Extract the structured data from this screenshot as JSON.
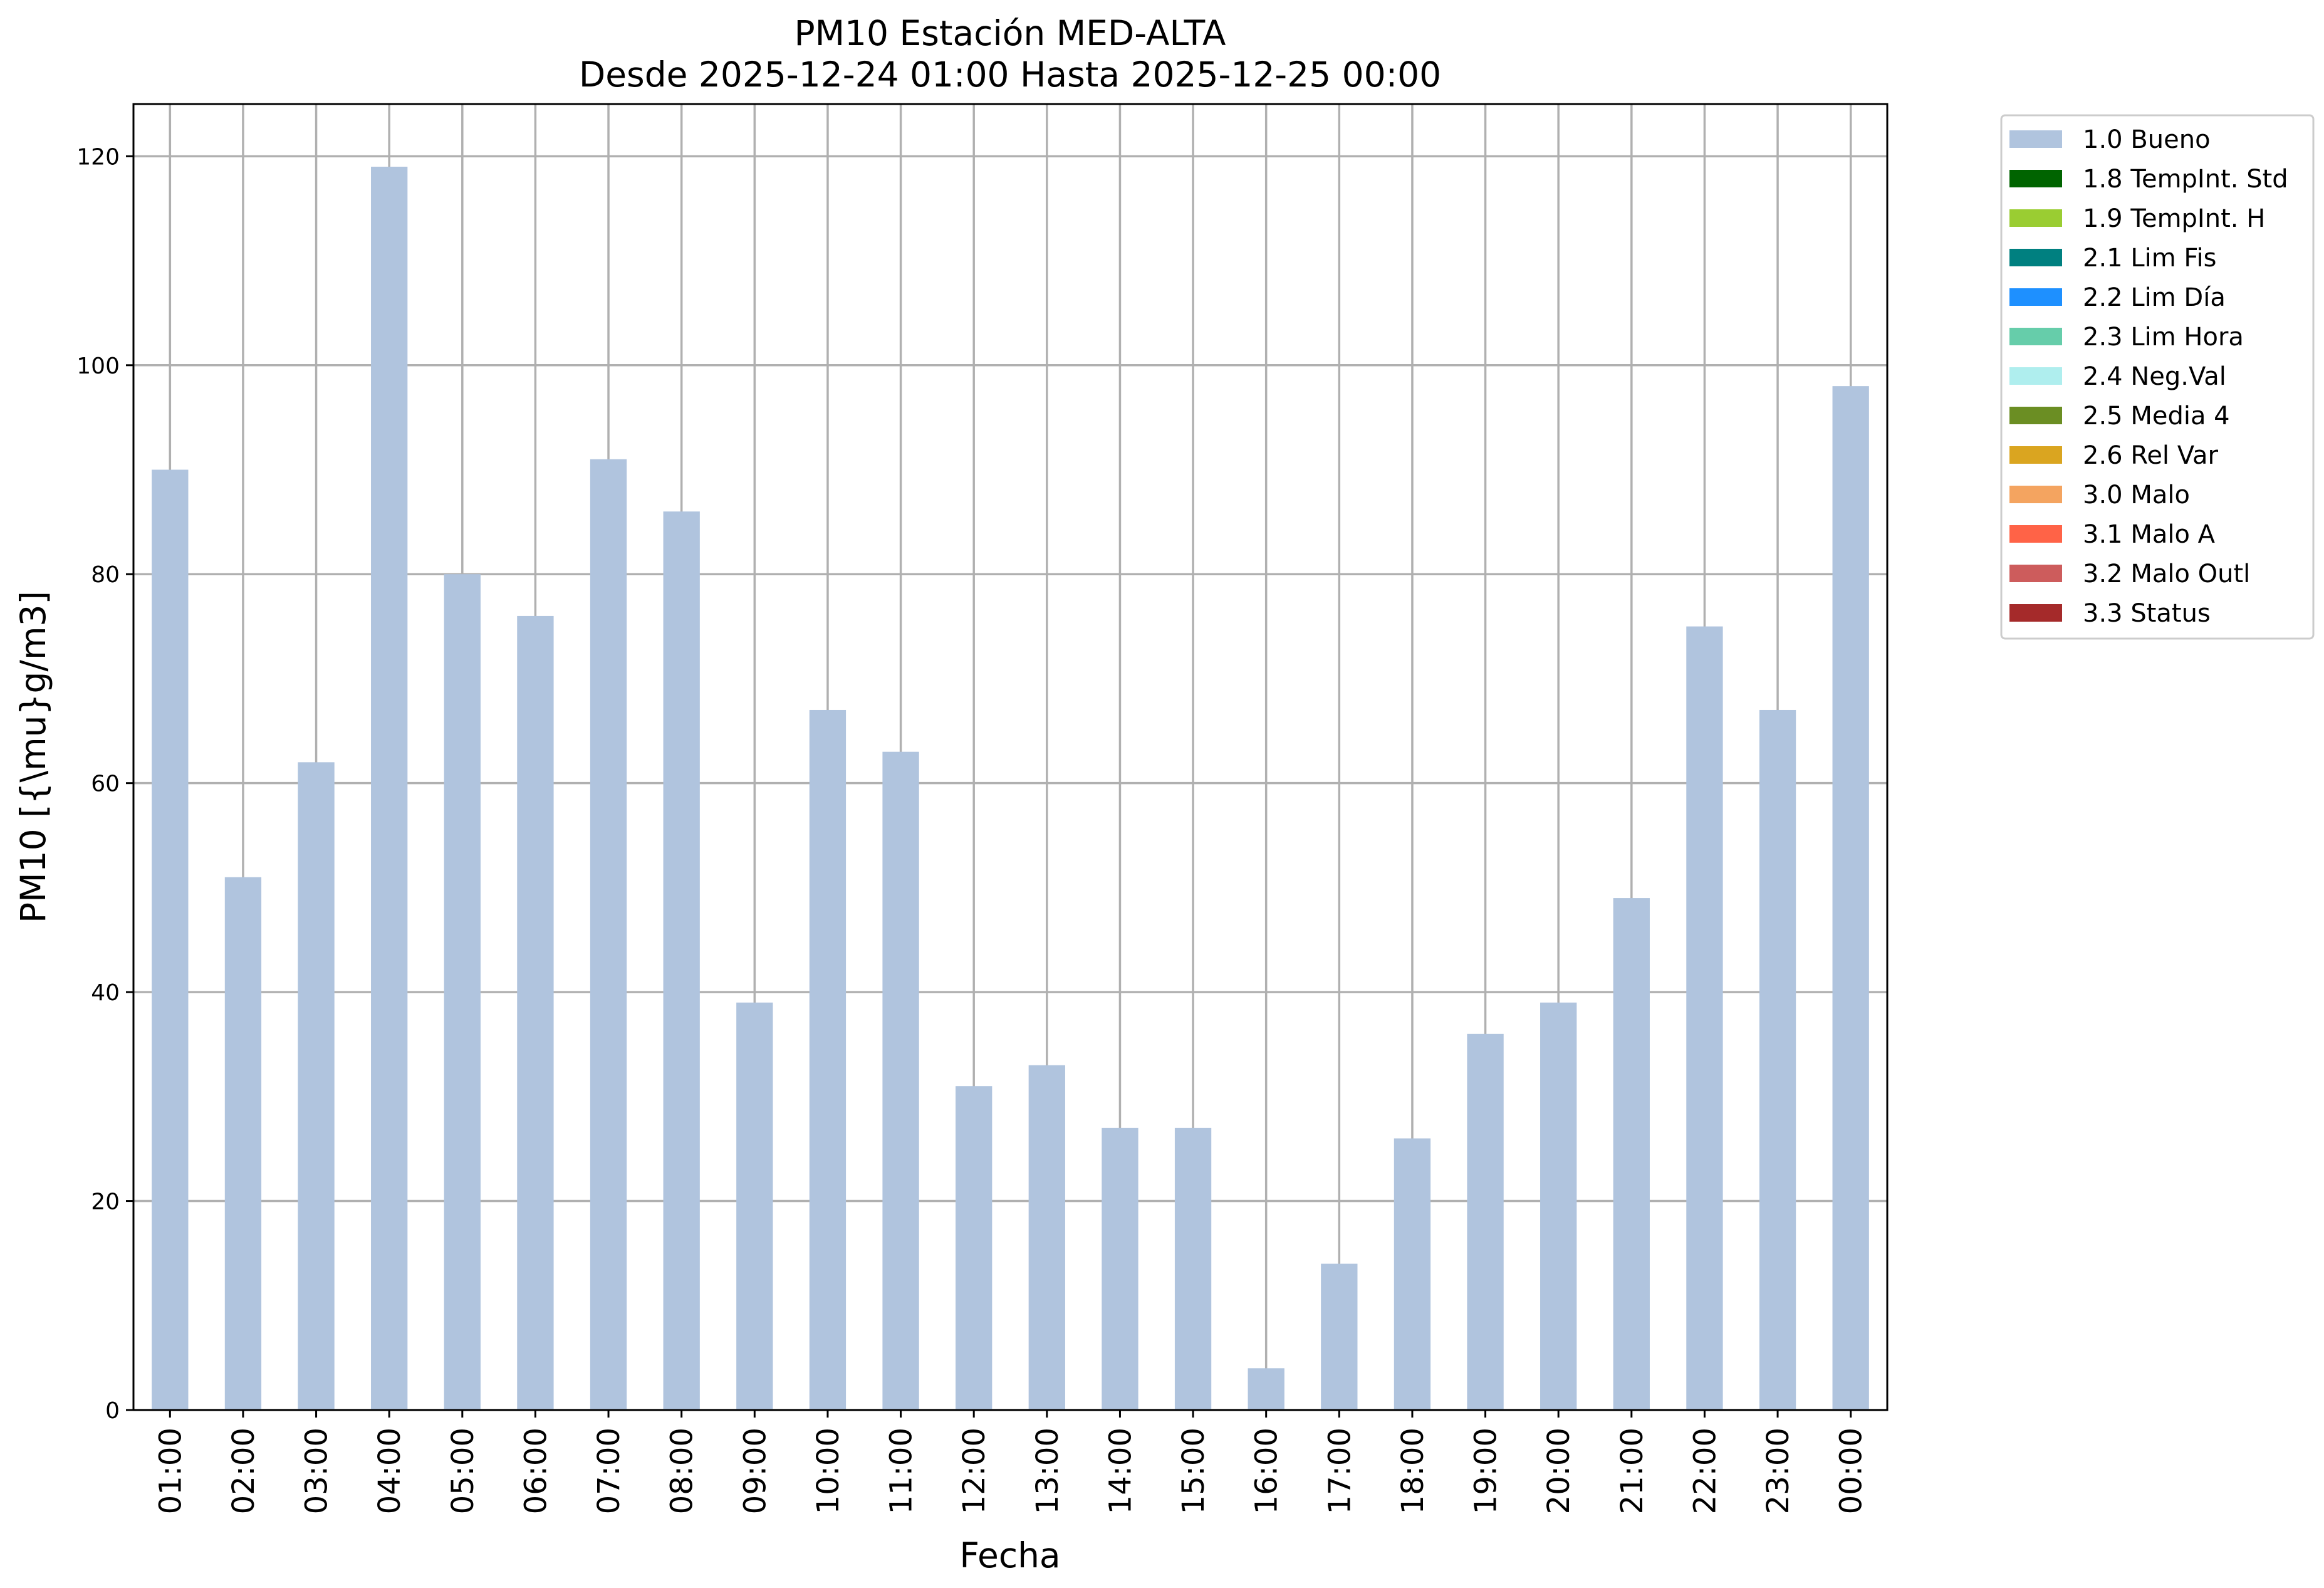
{
  "chart_data": {
    "type": "bar",
    "title": "PM10 Estación MED-ALTA",
    "subtitle": "Desde 2025-12-24 01:00 Hasta 2025-12-25 00:00",
    "xlabel": "Fecha",
    "ylabel": "PM10 [{\\mu}g/m3]",
    "ylim": [
      0,
      125
    ],
    "yticks": [
      0,
      20,
      40,
      60,
      80,
      100,
      120
    ],
    "grid": true,
    "legend_position": "outside-top-right",
    "categories": [
      "01:00",
      "02:00",
      "03:00",
      "04:00",
      "05:00",
      "06:00",
      "07:00",
      "08:00",
      "09:00",
      "10:00",
      "11:00",
      "12:00",
      "13:00",
      "14:00",
      "15:00",
      "16:00",
      "17:00",
      "18:00",
      "19:00",
      "20:00",
      "21:00",
      "22:00",
      "23:00",
      "00:00"
    ],
    "series": [
      {
        "name": "1.0 Bueno",
        "color": "#b0c4de",
        "values": [
          90,
          51,
          62,
          119,
          80,
          76,
          91,
          86,
          39,
          67,
          63,
          31,
          33,
          27,
          27,
          4,
          14,
          26,
          36,
          39,
          49,
          75,
          67,
          98
        ]
      }
    ],
    "legend": [
      {
        "label": "1.0 Bueno",
        "color": "#b0c4de"
      },
      {
        "label": "1.8 TempInt. Std",
        "color": "#006400"
      },
      {
        "label": "1.9 TempInt. H",
        "color": "#9acd32"
      },
      {
        "label": "2.1 Lim Fis",
        "color": "#008080"
      },
      {
        "label": "2.2 Lim Día",
        "color": "#1e90ff"
      },
      {
        "label": "2.3 Lim Hora",
        "color": "#66cdaa"
      },
      {
        "label": "2.4 Neg.Val",
        "color": "#afeeee"
      },
      {
        "label": "2.5 Media 4",
        "color": "#6b8e23"
      },
      {
        "label": "2.6 Rel Var",
        "color": "#daa520"
      },
      {
        "label": "3.0 Malo",
        "color": "#f4a460"
      },
      {
        "label": "3.1 Malo A",
        "color": "#ff6347"
      },
      {
        "label": "3.2 Malo Outl",
        "color": "#cd5c5c"
      },
      {
        "label": "3.3 Status",
        "color": "#a52a2a"
      }
    ]
  }
}
